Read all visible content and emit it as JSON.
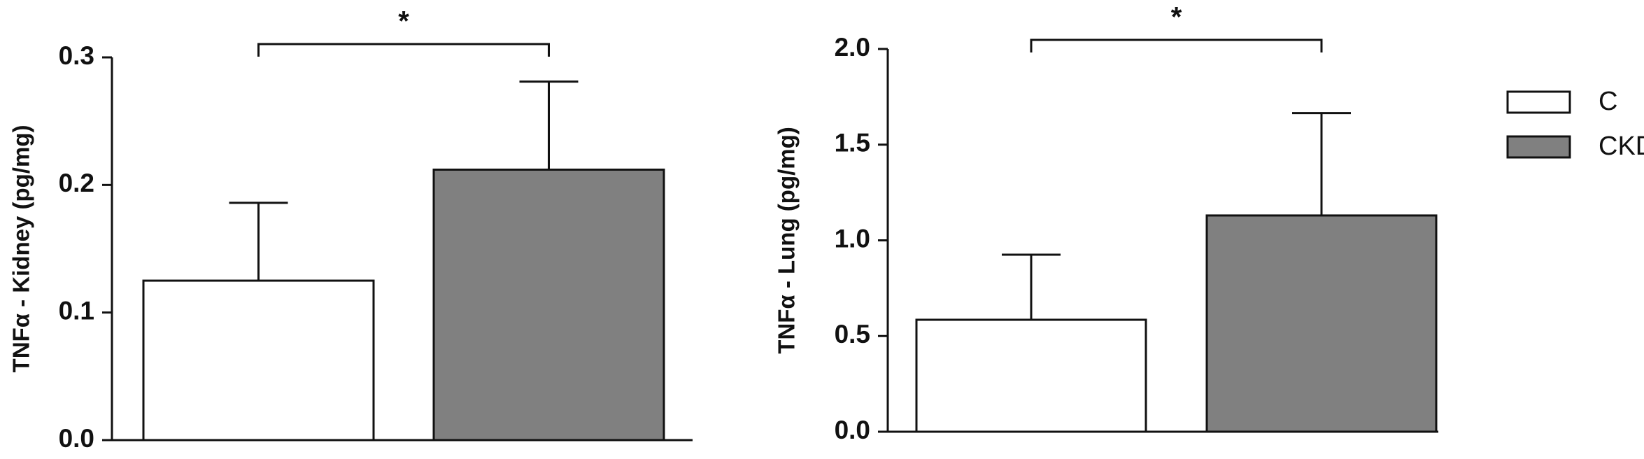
{
  "chart_data": [
    {
      "type": "bar",
      "y_label": "TNFα - Kidney (pg/mg)",
      "series": [
        {
          "color": "#ffffff",
          "values": [
            0.125
          ],
          "errors": [
            0.061
          ]
        },
        {
          "color": "#808080",
          "values": [
            0.212
          ],
          "errors": [
            0.069
          ]
        }
      ],
      "ylim": [
        0,
        0.3
      ],
      "yticks": [
        {
          "value": 0,
          "label": "0.0"
        },
        0.1,
        0.2,
        0.3
      ],
      "annotation": "*"
    },
    {
      "type": "bar",
      "y_label": "TNFα - Lung (pg/mg)",
      "series": [
        {
          "name": "C",
          "color": "#ffffff",
          "values": [
            0.585
          ],
          "errors": [
            0.34
          ]
        },
        {
          "name": "CKD",
          "color": "#808080",
          "values": [
            1.13
          ],
          "errors": [
            0.535
          ]
        }
      ],
      "ylim": [
        0,
        2.0
      ],
      "yticks": [
        {
          "value": 0,
          "label": "0.0"
        },
        0.5,
        {
          "value": 1,
          "label": "1.0"
        },
        1.5,
        {
          "value": 2,
          "label": "2.0"
        }
      ],
      "annotation": "*",
      "legend": "right"
    }
  ]
}
